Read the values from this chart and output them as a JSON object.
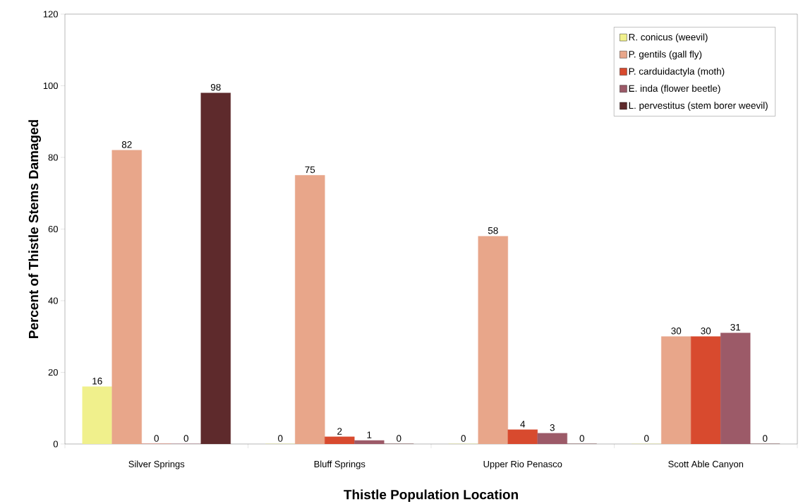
{
  "chart_data": {
    "type": "bar",
    "xlabel": "Thistle Population Location",
    "ylabel": "Percent of Thistle Stems Damaged",
    "categories": [
      "Silver Springs",
      "Bluff Springs",
      "Upper Rio Penasco",
      "Scott Able Canyon"
    ],
    "series": [
      {
        "name": "R. conicus (weevil)",
        "color": "#f0f08c",
        "values": [
          16,
          0,
          0,
          0
        ]
      },
      {
        "name": "P. gentils (gall fly)",
        "color": "#e8a68a",
        "values": [
          82,
          75,
          58,
          30
        ]
      },
      {
        "name": "P. carduidactyla (moth)",
        "color": "#d84a2e",
        "values": [
          0,
          2,
          4,
          30
        ]
      },
      {
        "name": "E. inda (flower beetle)",
        "color": "#9c5a68",
        "values": [
          0,
          1,
          3,
          31
        ]
      },
      {
        "name": "L. pervestitus (stem borer weevil)",
        "color": "#5e2a2c",
        "values": [
          98,
          0,
          0,
          0
        ]
      }
    ],
    "ylim": [
      0,
      120
    ],
    "yticks": [
      0,
      20,
      40,
      60,
      80,
      100,
      120
    ],
    "grid": false,
    "legend": "top right",
    "data_labels": true
  }
}
